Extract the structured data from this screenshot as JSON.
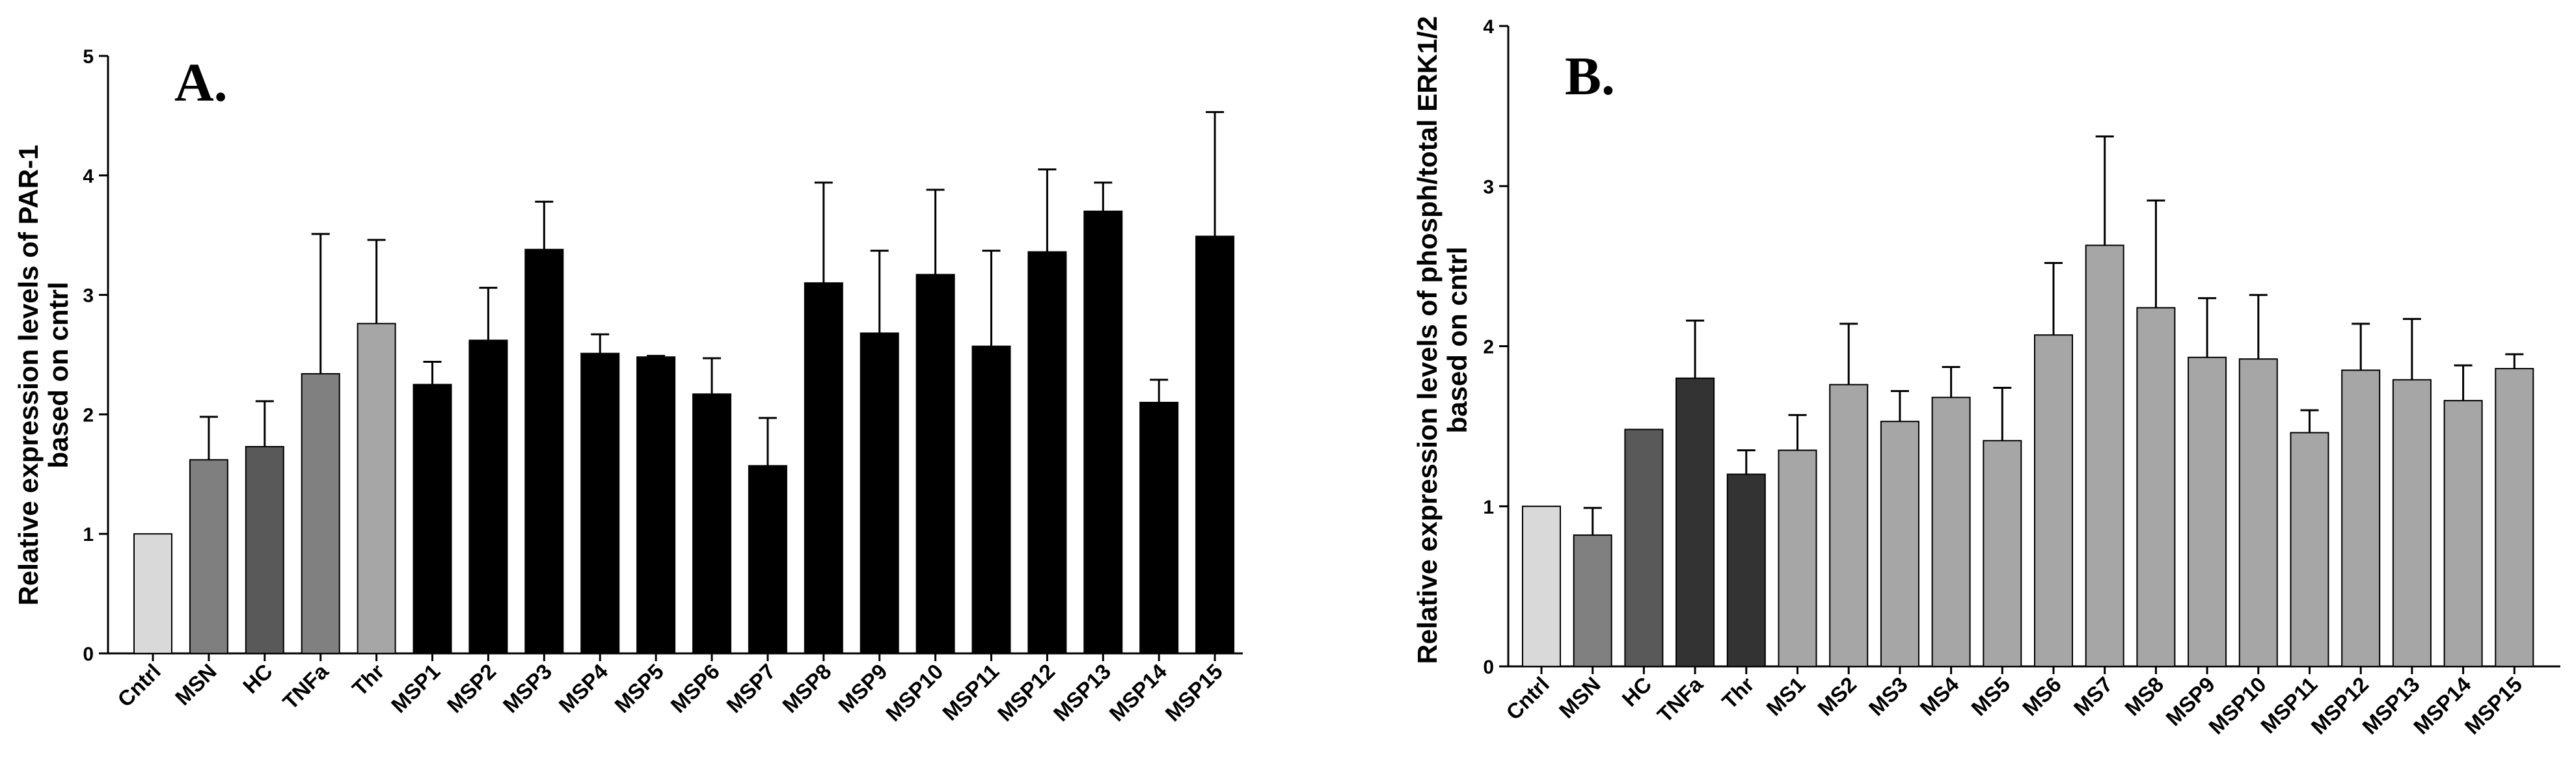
{
  "chart_data": [
    {
      "type": "bar",
      "panel_label": "A.",
      "ylabel_line1": "Relative expression levels of PAR-1",
      "ylabel_line2": "based on cntrl",
      "xlabel": "",
      "ylim": [
        0,
        5
      ],
      "yticks": [
        "0",
        "1",
        "2",
        "3",
        "4",
        "5"
      ],
      "grid": false,
      "categories": [
        "Cntrl",
        "MSN",
        "HC",
        "TNFa",
        "Thr",
        "MSP1",
        "MSP2",
        "MSP3",
        "MSP4",
        "MSP5",
        "MSP6",
        "MSP7",
        "MSP8",
        "MSP9",
        "MSP10",
        "MSP11",
        "MSP12",
        "MSP13",
        "MSP14",
        "MSP15"
      ],
      "values": [
        1.0,
        1.62,
        1.73,
        2.34,
        2.76,
        2.25,
        2.62,
        3.38,
        2.51,
        2.48,
        2.17,
        1.57,
        3.1,
        2.68,
        3.17,
        2.57,
        3.36,
        3.7,
        2.1,
        3.49
      ],
      "errors": [
        0,
        0.36,
        0.38,
        1.17,
        0.7,
        0.19,
        0.44,
        0.4,
        0.16,
        0.01,
        0.3,
        0.4,
        0.84,
        0.69,
        0.71,
        0.8,
        0.69,
        0.24,
        0.19,
        1.04
      ],
      "colors": [
        "#d9d9d9",
        "#7f7f7f",
        "#595959",
        "#808080",
        "#a6a6a6",
        "#000000",
        "#000000",
        "#000000",
        "#000000",
        "#000000",
        "#000000",
        "#000000",
        "#000000",
        "#000000",
        "#000000",
        "#000000",
        "#000000",
        "#000000",
        "#000000",
        "#000000"
      ]
    },
    {
      "type": "bar",
      "panel_label": "B.",
      "ylabel_line1": "Relative expression levels of phosph/total ERK1/2",
      "ylabel_line2": "based on cntrl",
      "xlabel": "",
      "ylim": [
        0,
        4
      ],
      "yticks": [
        "0",
        "1",
        "2",
        "3",
        "4"
      ],
      "grid": false,
      "categories": [
        "Cntrl",
        "MSN",
        "HC",
        "TNFa",
        "Thr",
        "MS1",
        "MS2",
        "MS3",
        "MS4",
        "MS5",
        "MS6",
        "MS7",
        "MS8",
        "MSP9",
        "MSP10",
        "MSP11",
        "MSP12",
        "MSP13",
        "MSP14",
        "MSP15"
      ],
      "values": [
        1.0,
        0.82,
        1.48,
        1.8,
        1.2,
        1.35,
        1.76,
        1.53,
        1.68,
        1.41,
        2.07,
        2.63,
        2.24,
        1.93,
        1.92,
        1.46,
        1.85,
        1.79,
        1.66,
        1.86
      ],
      "errors": [
        0,
        0.17,
        0,
        0.36,
        0.15,
        0.22,
        0.38,
        0.19,
        0.19,
        0.33,
        0.45,
        0.68,
        0.67,
        0.37,
        0.4,
        0.14,
        0.29,
        0.38,
        0.22,
        0.09
      ],
      "colors": [
        "#d9d9d9",
        "#808080",
        "#595959",
        "#333333",
        "#333333",
        "#a6a6a6",
        "#a6a6a6",
        "#a6a6a6",
        "#a6a6a6",
        "#a6a6a6",
        "#a6a6a6",
        "#a6a6a6",
        "#a6a6a6",
        "#a6a6a6",
        "#a6a6a6",
        "#a6a6a6",
        "#a6a6a6",
        "#a6a6a6",
        "#a6a6a6",
        "#a6a6a6"
      ]
    }
  ]
}
